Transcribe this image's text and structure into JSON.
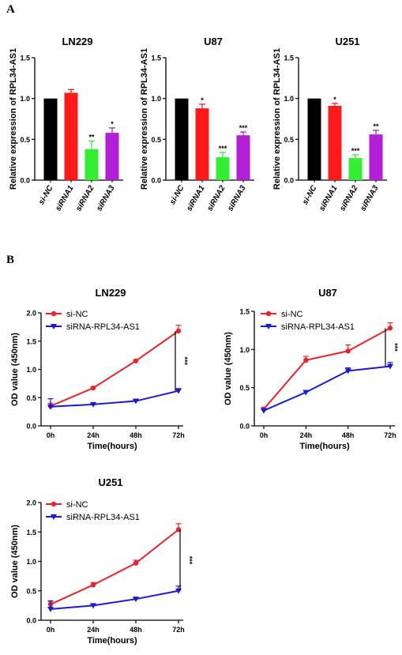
{
  "panels": {
    "a": "A",
    "b": "B"
  },
  "chart_data": [
    {
      "type": "bar",
      "title": "LN229",
      "ylabel": "Relative expression of RPL34-AS1",
      "categories": [
        "si-NC",
        "siRNA1",
        "siRNA2",
        "siRNA3"
      ],
      "values": [
        1.0,
        1.07,
        0.38,
        0.58
      ],
      "errors": [
        0,
        0.04,
        0.1,
        0.06
      ],
      "significance": [
        "",
        "",
        "**",
        "*"
      ],
      "colors": [
        "#000000",
        "#ff1a1a",
        "#33ee33",
        "#b31fd6"
      ],
      "ylim": [
        0,
        1.5
      ],
      "yticks": [
        "0.0",
        "0.5",
        "1.0",
        "1.5"
      ]
    },
    {
      "type": "bar",
      "title": "U87",
      "ylabel": "Relative expression of RPL34-AS1",
      "categories": [
        "si-NC",
        "siRNA1",
        "siRNA2",
        "siRNA3"
      ],
      "values": [
        1.0,
        0.88,
        0.28,
        0.55
      ],
      "errors": [
        0,
        0.05,
        0.06,
        0.04
      ],
      "significance": [
        "",
        "*",
        "***",
        "***"
      ],
      "colors": [
        "#000000",
        "#ff1a1a",
        "#33ee33",
        "#b31fd6"
      ],
      "ylim": [
        0,
        1.5
      ],
      "yticks": [
        "0.0",
        "0.5",
        "1.0",
        "1.5"
      ]
    },
    {
      "type": "bar",
      "title": "U251",
      "ylabel": "Relative expression of RPL34-AS1",
      "categories": [
        "si-NC",
        "siRNA1",
        "siRNA2",
        "siRNA3"
      ],
      "values": [
        1.0,
        0.91,
        0.27,
        0.56
      ],
      "errors": [
        0,
        0.03,
        0.04,
        0.05
      ],
      "significance": [
        "",
        "*",
        "***",
        "**"
      ],
      "colors": [
        "#000000",
        "#ff1a1a",
        "#33ee33",
        "#b31fd6"
      ],
      "ylim": [
        0,
        1.5
      ],
      "yticks": [
        "0.0",
        "0.5",
        "1.0",
        "1.5"
      ]
    },
    {
      "type": "line",
      "title": "LN229",
      "xlabel": "Time(hours)",
      "ylabel": "OD value (450nm)",
      "x": [
        "0h",
        "24h",
        "48h",
        "72h"
      ],
      "ylim": [
        0,
        2.0
      ],
      "yticks": [
        "0.0",
        "0.5",
        "1.0",
        "1.5",
        "2.0"
      ],
      "series": [
        {
          "name": "si-NC",
          "color": "#e8232b",
          "marker": "circle",
          "values": [
            0.35,
            0.67,
            1.15,
            1.68
          ],
          "errors": [
            0.05,
            0.02,
            0.02,
            0.1
          ]
        },
        {
          "name": "siRNA-RPL34-AS1",
          "color": "#1a1ad6",
          "marker": "triangle",
          "values": [
            0.34,
            0.38,
            0.44,
            0.62
          ],
          "errors": [
            0.14,
            0.02,
            0.02,
            0.04
          ]
        }
      ],
      "significance": "***"
    },
    {
      "type": "line",
      "title": "U87",
      "xlabel": "Time(hours)",
      "ylabel": "OD value (450nm)",
      "x": [
        "0h",
        "24h",
        "48h",
        "72h"
      ],
      "ylim": [
        0,
        1.5
      ],
      "yticks": [
        "0.0",
        "0.5",
        "1.0",
        "1.5"
      ],
      "series": [
        {
          "name": "si-NC",
          "color": "#e8232b",
          "marker": "circle",
          "values": [
            0.22,
            0.86,
            0.98,
            1.28
          ],
          "errors": [
            0.02,
            0.05,
            0.08,
            0.07
          ]
        },
        {
          "name": "siRNA-RPL34-AS1",
          "color": "#1a1ad6",
          "marker": "triangle",
          "values": [
            0.2,
            0.44,
            0.72,
            0.78
          ],
          "errors": [
            0.02,
            0.02,
            0.04,
            0.05
          ]
        }
      ],
      "significance": "***"
    },
    {
      "type": "line",
      "title": "U251",
      "xlabel": "Time(hours)",
      "ylabel": "OD value (450nm)",
      "x": [
        "0h",
        "24h",
        "48h",
        "72h"
      ],
      "ylim": [
        0,
        2.0
      ],
      "yticks": [
        "0.0",
        "0.5",
        "1.0",
        "1.5",
        "2.0"
      ],
      "series": [
        {
          "name": "si-NC",
          "color": "#e8232b",
          "marker": "circle",
          "values": [
            0.27,
            0.6,
            0.97,
            1.54
          ],
          "errors": [
            0.05,
            0.04,
            0.05,
            0.1
          ]
        },
        {
          "name": "siRNA-RPL34-AS1",
          "color": "#1a1ad6",
          "marker": "triangle",
          "values": [
            0.19,
            0.25,
            0.36,
            0.5
          ],
          "errors": [
            0.14,
            0.02,
            0.02,
            0.08
          ]
        }
      ],
      "significance": "***"
    }
  ]
}
